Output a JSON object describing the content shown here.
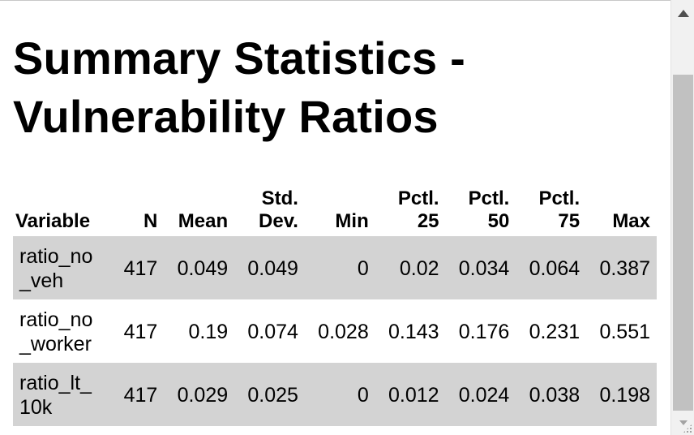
{
  "title": "Summary Statistics - Vulnerability Ratios",
  "table": {
    "headers": {
      "variable": "Variable",
      "n": "N",
      "mean": "Mean",
      "std_1": "Std.",
      "std_2": "Dev.",
      "min": "Min",
      "p25_1": "Pctl.",
      "p25_2": "25",
      "p50_1": "Pctl.",
      "p50_2": "50",
      "p75_1": "Pctl.",
      "p75_2": "75",
      "max": "Max"
    },
    "rows": [
      {
        "variable_1": "ratio_no",
        "variable_2": "_veh",
        "n": "417",
        "mean": "0.049",
        "sd": "0.049",
        "min": "0",
        "p25": "0.02",
        "p50": "0.034",
        "p75": "0.064",
        "max": "0.387"
      },
      {
        "variable_1": "ratio_no",
        "variable_2": "_worker",
        "n": "417",
        "mean": "0.19",
        "sd": "0.074",
        "min": "0.028",
        "p25": "0.143",
        "p50": "0.176",
        "p75": "0.231",
        "max": "0.551"
      },
      {
        "variable_1": "ratio_lt_",
        "variable_2": "10k",
        "n": "417",
        "mean": "0.029",
        "sd": "0.025",
        "min": "0",
        "p25": "0.012",
        "p50": "0.024",
        "p75": "0.038",
        "max": "0.198"
      }
    ]
  },
  "colors": {
    "row_shade": "#d3d3d3",
    "scrollbar_track": "#f1f1f1",
    "scrollbar_thumb": "#c1c1c1"
  }
}
